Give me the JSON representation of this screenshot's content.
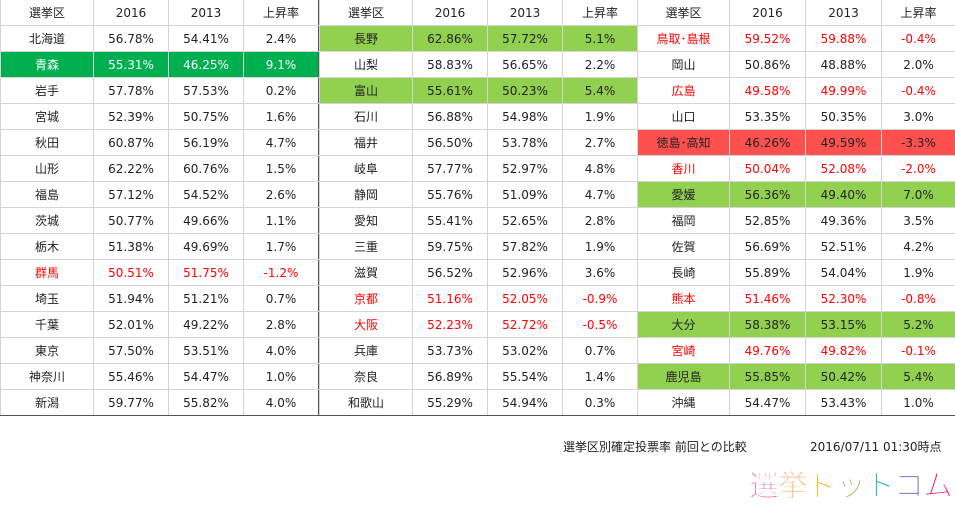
{
  "chart_data": {
    "type": "table",
    "columns": [
      "選挙区",
      "2016",
      "2013",
      "上昇率"
    ],
    "colors": {
      "light_green": "#92d050",
      "dark_green": "#00b050",
      "red_fill": "#ff5050",
      "red_text": "#ff0000"
    },
    "blocks": [
      {
        "rows": [
          {
            "district": "北海道",
            "y2016": "56.78%",
            "y2013": "54.41%",
            "change": "2.4%",
            "style": ""
          },
          {
            "district": "青森",
            "y2016": "55.31%",
            "y2013": "46.25%",
            "change": "9.1%",
            "style": "darkgreen"
          },
          {
            "district": "岩手",
            "y2016": "57.78%",
            "y2013": "57.53%",
            "change": "0.2%",
            "style": ""
          },
          {
            "district": "宮城",
            "y2016": "52.39%",
            "y2013": "50.75%",
            "change": "1.6%",
            "style": ""
          },
          {
            "district": "秋田",
            "y2016": "60.87%",
            "y2013": "56.19%",
            "change": "4.7%",
            "style": ""
          },
          {
            "district": "山形",
            "y2016": "62.22%",
            "y2013": "60.76%",
            "change": "1.5%",
            "style": ""
          },
          {
            "district": "福島",
            "y2016": "57.12%",
            "y2013": "54.52%",
            "change": "2.6%",
            "style": ""
          },
          {
            "district": "茨城",
            "y2016": "50.77%",
            "y2013": "49.66%",
            "change": "1.1%",
            "style": ""
          },
          {
            "district": "栃木",
            "y2016": "51.38%",
            "y2013": "49.69%",
            "change": "1.7%",
            "style": ""
          },
          {
            "district": "群馬",
            "y2016": "50.51%",
            "y2013": "51.75%",
            "change": "-1.2%",
            "style": "redtext"
          },
          {
            "district": "埼玉",
            "y2016": "51.94%",
            "y2013": "51.21%",
            "change": "0.7%",
            "style": ""
          },
          {
            "district": "千葉",
            "y2016": "52.01%",
            "y2013": "49.22%",
            "change": "2.8%",
            "style": ""
          },
          {
            "district": "東京",
            "y2016": "57.50%",
            "y2013": "53.51%",
            "change": "4.0%",
            "style": ""
          },
          {
            "district": "神奈川",
            "y2016": "55.46%",
            "y2013": "54.47%",
            "change": "1.0%",
            "style": ""
          },
          {
            "district": "新潟",
            "y2016": "59.77%",
            "y2013": "55.82%",
            "change": "4.0%",
            "style": ""
          }
        ]
      },
      {
        "rows": [
          {
            "district": "長野",
            "y2016": "62.86%",
            "y2013": "57.72%",
            "change": "5.1%",
            "style": "lightgreen"
          },
          {
            "district": "山梨",
            "y2016": "58.83%",
            "y2013": "56.65%",
            "change": "2.2%",
            "style": ""
          },
          {
            "district": "富山",
            "y2016": "55.61%",
            "y2013": "50.23%",
            "change": "5.4%",
            "style": "lightgreen"
          },
          {
            "district": "石川",
            "y2016": "56.88%",
            "y2013": "54.98%",
            "change": "1.9%",
            "style": ""
          },
          {
            "district": "福井",
            "y2016": "56.50%",
            "y2013": "53.78%",
            "change": "2.7%",
            "style": ""
          },
          {
            "district": "岐阜",
            "y2016": "57.77%",
            "y2013": "52.97%",
            "change": "4.8%",
            "style": ""
          },
          {
            "district": "静岡",
            "y2016": "55.76%",
            "y2013": "51.09%",
            "change": "4.7%",
            "style": ""
          },
          {
            "district": "愛知",
            "y2016": "55.41%",
            "y2013": "52.65%",
            "change": "2.8%",
            "style": ""
          },
          {
            "district": "三重",
            "y2016": "59.75%",
            "y2013": "57.82%",
            "change": "1.9%",
            "style": ""
          },
          {
            "district": "滋賀",
            "y2016": "56.52%",
            "y2013": "52.96%",
            "change": "3.6%",
            "style": ""
          },
          {
            "district": "京都",
            "y2016": "51.16%",
            "y2013": "52.05%",
            "change": "-0.9%",
            "style": "redtext"
          },
          {
            "district": "大阪",
            "y2016": "52.23%",
            "y2013": "52.72%",
            "change": "-0.5%",
            "style": "redtext"
          },
          {
            "district": "兵庫",
            "y2016": "53.73%",
            "y2013": "53.02%",
            "change": "0.7%",
            "style": ""
          },
          {
            "district": "奈良",
            "y2016": "56.89%",
            "y2013": "55.54%",
            "change": "1.4%",
            "style": ""
          },
          {
            "district": "和歌山",
            "y2016": "55.29%",
            "y2013": "54.94%",
            "change": "0.3%",
            "style": ""
          }
        ]
      },
      {
        "rows": [
          {
            "district": "鳥取･島根",
            "y2016": "59.52%",
            "y2013": "59.88%",
            "change": "-0.4%",
            "style": "redtext"
          },
          {
            "district": "岡山",
            "y2016": "50.86%",
            "y2013": "48.88%",
            "change": "2.0%",
            "style": ""
          },
          {
            "district": "広島",
            "y2016": "49.58%",
            "y2013": "49.99%",
            "change": "-0.4%",
            "style": "redtext"
          },
          {
            "district": "山口",
            "y2016": "53.35%",
            "y2013": "50.35%",
            "change": "3.0%",
            "style": ""
          },
          {
            "district": "徳島･高知",
            "y2016": "46.26%",
            "y2013": "49.59%",
            "change": "-3.3%",
            "style": "red"
          },
          {
            "district": "香川",
            "y2016": "50.04%",
            "y2013": "52.08%",
            "change": "-2.0%",
            "style": "redtext"
          },
          {
            "district": "愛媛",
            "y2016": "56.36%",
            "y2013": "49.40%",
            "change": "7.0%",
            "style": "lightgreen"
          },
          {
            "district": "福岡",
            "y2016": "52.85%",
            "y2013": "49.36%",
            "change": "3.5%",
            "style": ""
          },
          {
            "district": "佐賀",
            "y2016": "56.69%",
            "y2013": "52.51%",
            "change": "4.2%",
            "style": ""
          },
          {
            "district": "長崎",
            "y2016": "55.89%",
            "y2013": "54.04%",
            "change": "1.9%",
            "style": ""
          },
          {
            "district": "熊本",
            "y2016": "51.46%",
            "y2013": "52.30%",
            "change": "-0.8%",
            "style": "redtext"
          },
          {
            "district": "大分",
            "y2016": "58.38%",
            "y2013": "53.15%",
            "change": "5.2%",
            "style": "lightgreen"
          },
          {
            "district": "宮崎",
            "y2016": "49.76%",
            "y2013": "49.82%",
            "change": "-0.1%",
            "style": "redtext"
          },
          {
            "district": "鹿児島",
            "y2016": "55.85%",
            "y2013": "50.42%",
            "change": "5.4%",
            "style": "lightgreen"
          },
          {
            "district": "沖縄",
            "y2016": "54.47%",
            "y2013": "53.43%",
            "change": "1.0%",
            "style": ""
          }
        ]
      }
    ]
  },
  "footer": {
    "title": "選挙区別確定投票率 前回との比較",
    "timestamp": "2016/07/11 01:30時点"
  },
  "logo": {
    "text": "選挙ドットコム",
    "colors": [
      "#e4006e",
      "#ff7a00",
      "#f0b400",
      "#6dbb2c",
      "#00a0e0",
      "#6c4bc2"
    ]
  }
}
